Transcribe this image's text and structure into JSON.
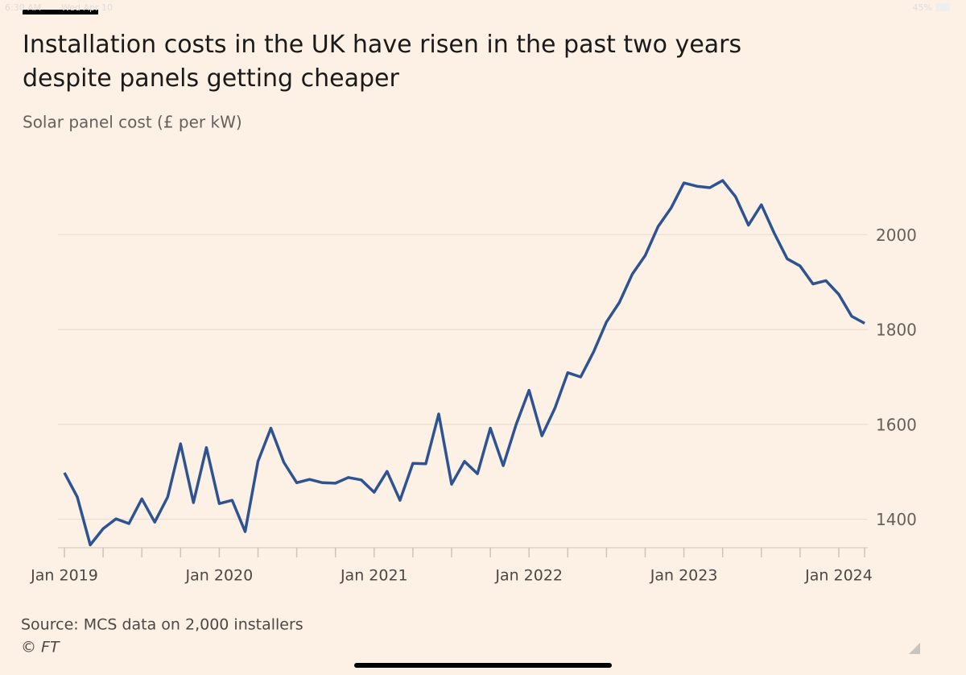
{
  "status_bar": {
    "time": "6:30 AM",
    "date": "Wed Apr 10",
    "battery": "45%"
  },
  "chart_data": {
    "type": "line",
    "title": "Installation costs in the UK have risen in the past two years despite panels getting cheaper",
    "subtitle": "Solar panel cost (£ per kW)",
    "source": "Source: MCS data on 2,000 installers",
    "credit": "© FT",
    "categories": [
      "Jan 2019",
      null,
      null,
      null,
      null,
      null,
      null,
      null,
      null,
      null,
      null,
      null,
      "Jan 2020",
      null,
      null,
      null,
      null,
      null,
      null,
      null,
      null,
      null,
      null,
      null,
      "Jan 2021",
      null,
      null,
      null,
      null,
      null,
      null,
      null,
      null,
      null,
      null,
      null,
      "Jan 2022",
      null,
      null,
      null,
      null,
      null,
      null,
      null,
      null,
      null,
      null,
      null,
      "Jan 2023",
      null,
      null,
      null,
      null,
      null,
      null,
      null,
      null,
      null,
      null,
      null,
      "Jan 2024",
      null,
      null
    ],
    "series": [
      {
        "color": "#2d5392",
        "values": [
          1498,
          1447,
          1346,
          1380,
          1401,
          1391,
          1443,
          1394,
          1447,
          1559,
          1435,
          1551,
          1433,
          1440,
          1374,
          1522,
          1592,
          1520,
          1477,
          1484,
          1477,
          1476,
          1488,
          1483,
          1457,
          1501,
          1440,
          1518,
          1517,
          1622,
          1474,
          1522,
          1496,
          1592,
          1513,
          1600,
          1672,
          1576,
          1634,
          1709,
          1700,
          1753,
          1816,
          1857,
          1917,
          1956,
          2017,
          2056,
          2109,
          2102,
          2099,
          2114,
          2080,
          2020,
          2063,
          2003,
          1949,
          1934,
          1896,
          1903,
          1874,
          1828,
          1813
        ]
      }
    ],
    "ylim": [
      1340,
      2200
    ],
    "yticks": [
      1400,
      1600,
      1800,
      2000
    ],
    "grid": true,
    "y_axis_side": "right"
  }
}
